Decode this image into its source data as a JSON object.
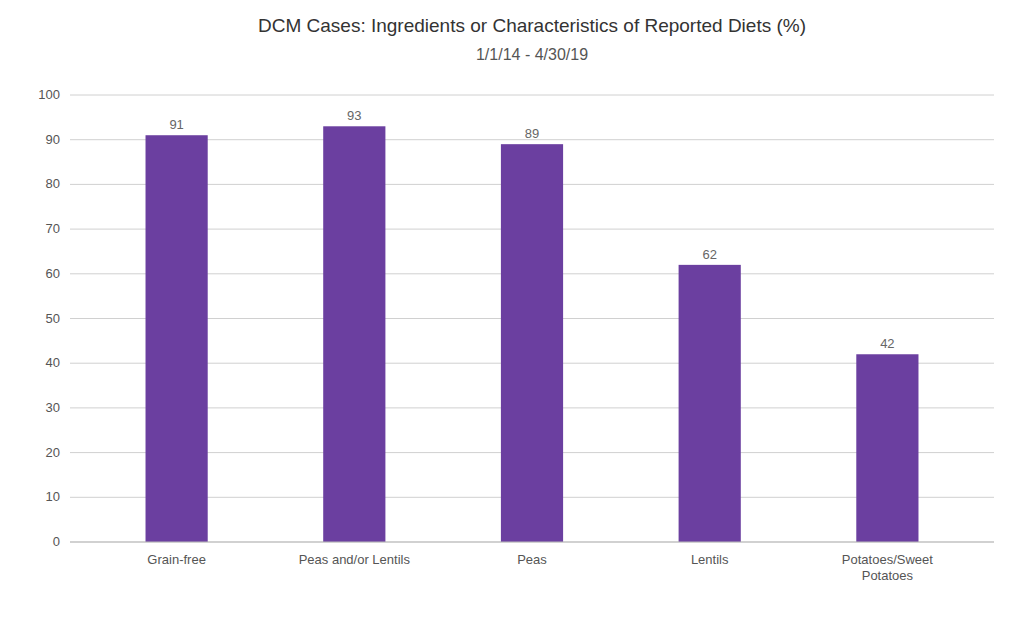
{
  "chart_data": {
    "type": "bar",
    "title": "DCM Cases: Ingredients or Characteristics of Reported Diets (%)",
    "subtitle": "1/1/14 - 4/30/19",
    "categories": [
      "Grain-free",
      "Peas and/or Lentils",
      "Peas",
      "Lentils",
      "Potatoes/Sweet\nPotatoes"
    ],
    "values": [
      91,
      93,
      89,
      62,
      42
    ],
    "color": "#6B3FA0",
    "ylim": [
      0,
      100
    ],
    "yticks": [
      0,
      10,
      20,
      30,
      40,
      50,
      60,
      70,
      80,
      90,
      100
    ],
    "grid": true,
    "data_labels": true
  }
}
